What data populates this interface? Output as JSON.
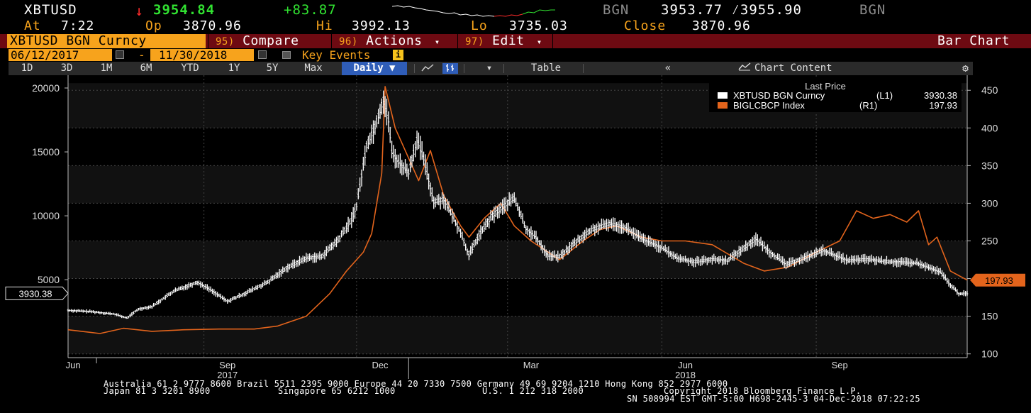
{
  "quote": {
    "ticker": "XBTUSD",
    "direction_arrow": "↓",
    "last": "3954.84",
    "change": "+83.87",
    "source1": "BGN",
    "bid_ask": "3953.77 ⁄3955.90",
    "source2": "BGN",
    "colors": {
      "down": "#ff2b2b",
      "up": "#31e131",
      "label": "#f7a31c"
    }
  },
  "session": {
    "at_label": "At",
    "at_value": "7:22",
    "op_label": "Op",
    "op_value": "3870.96",
    "hi_label": "Hi",
    "hi_value": "3992.13",
    "lo_label": "Lo",
    "lo_value": "3735.03",
    "close_label": "Close",
    "close_value": "3870.96"
  },
  "function_bar": {
    "security": "XBTUSD BGN Curncy",
    "compare": {
      "num": "95)",
      "label": "Compare"
    },
    "actions": {
      "num": "96)",
      "label": "Actions",
      "caret": "▾"
    },
    "edit": {
      "num": "97)",
      "label": "Edit",
      "caret": "▾"
    },
    "title": "Bar Chart"
  },
  "range": {
    "start": "06/12/2017",
    "dash": "-",
    "end": "11/30/2018",
    "key_events": "Key Events",
    "info": "i"
  },
  "toolbar": {
    "periods": [
      "1D",
      "3D",
      "1M",
      "6M",
      "YTD",
      "1Y",
      "5Y",
      "Max"
    ],
    "frequency": "Daily ▼",
    "table": "Table",
    "collapse": "«",
    "chart_content": "Chart Content",
    "line_icon": "line-chart-icon",
    "bar_icon": "bar-chart-icon",
    "dropdown_caret": "▾",
    "gear": "⚙"
  },
  "chart_data": {
    "type": "line",
    "legend_title": "Last Price",
    "legend_position": "top-right",
    "grid": true,
    "x_axis": {
      "ticks": [
        "Jun",
        "Sep",
        "Dec",
        "Mar",
        "Jun",
        "Sep"
      ],
      "years": [
        "2017",
        "2018"
      ],
      "range": [
        "2017-06-12",
        "2018-11-30"
      ]
    },
    "left_axis": {
      "ticks": [
        5000,
        10000,
        15000,
        20000
      ],
      "ylim": [
        -1100,
        21000
      ]
    },
    "right_axis": {
      "ticks": [
        100,
        150,
        200,
        250,
        300,
        350,
        400,
        450
      ],
      "ylim": [
        95,
        470
      ]
    },
    "series": [
      {
        "name": "XBTUSD BGN Curncy",
        "axis": "L1",
        "last": "3930.38",
        "last_label": "3930.38",
        "color": "#ffffff",
        "style": "bar",
        "x": [
          "2017-06-12",
          "2017-06-26",
          "2017-07-10",
          "2017-07-17",
          "2017-07-24",
          "2017-08-01",
          "2017-08-14",
          "2017-08-28",
          "2017-09-04",
          "2017-09-15",
          "2017-09-25",
          "2017-10-09",
          "2017-10-20",
          "2017-11-01",
          "2017-11-10",
          "2017-11-20",
          "2017-11-28",
          "2017-12-01",
          "2017-12-07",
          "2017-12-12",
          "2017-12-17",
          "2017-12-20",
          "2017-12-22",
          "2017-12-26",
          "2018-01-01",
          "2018-01-06",
          "2018-01-10",
          "2018-01-16",
          "2018-01-22",
          "2018-02-01",
          "2018-02-06",
          "2018-02-12",
          "2018-02-20",
          "2018-03-01",
          "2018-03-05",
          "2018-03-12",
          "2018-03-18",
          "2018-03-25",
          "2018-04-01",
          "2018-04-12",
          "2018-04-20",
          "2018-05-01",
          "2018-05-10",
          "2018-05-20",
          "2018-06-01",
          "2018-06-10",
          "2018-06-20",
          "2018-07-01",
          "2018-07-10",
          "2018-07-20",
          "2018-07-27",
          "2018-08-05",
          "2018-08-14",
          "2018-08-25",
          "2018-09-05",
          "2018-09-20",
          "2018-10-01",
          "2018-10-15",
          "2018-10-31",
          "2018-11-14",
          "2018-11-20",
          "2018-11-25",
          "2018-11-30"
        ],
        "values": [
          2600,
          2500,
          2300,
          2000,
          2700,
          2900,
          4100,
          4800,
          4300,
          3300,
          3900,
          4800,
          5900,
          6700,
          6800,
          8100,
          9700,
          10800,
          15500,
          17000,
          19100,
          17500,
          15000,
          14200,
          13400,
          16000,
          14500,
          11100,
          11300,
          8700,
          6900,
          8500,
          10000,
          11000,
          11400,
          9000,
          8300,
          6900,
          6800,
          8100,
          8900,
          9400,
          9100,
          8200,
          7500,
          6700,
          6400,
          6600,
          6500,
          7500,
          8200,
          7100,
          6200,
          6700,
          7300,
          6500,
          6600,
          6400,
          6300,
          5600,
          4600,
          3900,
          3930
        ]
      },
      {
        "name": "BIGLCBCP Index",
        "axis": "R1",
        "last": "197.93",
        "last_label": "197.93",
        "color": "#e3641c",
        "style": "line",
        "x": [
          "2017-06-12",
          "2017-07-01",
          "2017-07-15",
          "2017-08-01",
          "2017-08-20",
          "2017-09-10",
          "2017-10-01",
          "2017-10-15",
          "2017-11-01",
          "2017-11-15",
          "2017-11-25",
          "2017-12-05",
          "2017-12-10",
          "2017-12-16",
          "2017-12-18",
          "2017-12-24",
          "2018-01-01",
          "2018-01-07",
          "2018-01-14",
          "2018-01-22",
          "2018-02-01",
          "2018-02-06",
          "2018-02-15",
          "2018-02-25",
          "2018-03-05",
          "2018-03-15",
          "2018-04-01",
          "2018-04-15",
          "2018-04-25",
          "2018-05-05",
          "2018-05-20",
          "2018-06-01",
          "2018-06-15",
          "2018-07-01",
          "2018-07-20",
          "2018-08-01",
          "2018-08-15",
          "2018-09-01",
          "2018-09-15",
          "2018-09-25",
          "2018-10-05",
          "2018-10-15",
          "2018-10-25",
          "2018-11-01",
          "2018-11-07",
          "2018-11-12",
          "2018-11-20",
          "2018-11-30"
        ],
        "values": [
          132,
          127,
          134,
          130,
          132,
          133,
          133,
          137,
          150,
          180,
          210,
          235,
          260,
          340,
          455,
          400,
          360,
          330,
          370,
          310,
          270,
          255,
          280,
          300,
          270,
          250,
          225,
          250,
          265,
          270,
          255,
          250,
          250,
          245,
          220,
          210,
          215,
          235,
          250,
          290,
          280,
          285,
          275,
          290,
          245,
          255,
          210,
          198
        ]
      }
    ]
  },
  "footer": {
    "line1": "Australia 61 2 9777 8600 Brazil 5511 2395 9000 Europe 44 20 7330 7500 Germany 49 69 9204 1210 Hong Kong 852 2977 6000",
    "line2a": "Japan 81 3 3201 8900",
    "line2b": "Singapore 65 6212 1000",
    "line2c": "U.S. 1 212 318 2000",
    "line2d": "Copyright 2018 Bloomberg Finance L.P.",
    "line3": "SN 508994 EST  GMT-5:00 H698-2445-3 04-Dec-2018 07:22:25"
  }
}
